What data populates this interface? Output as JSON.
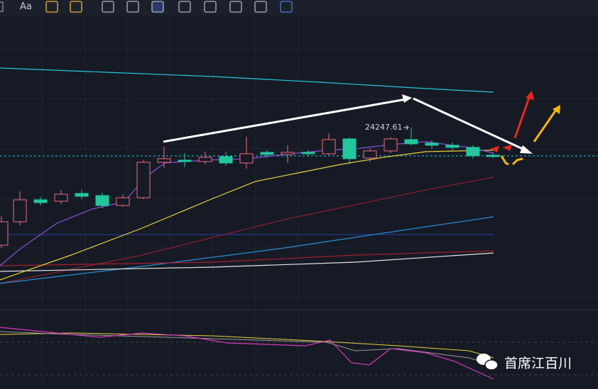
{
  "toolbar": {
    "font_tool": "Aa"
  },
  "chart": {
    "price_label": "24247.61"
  },
  "watermark": {
    "text": "首席江百川"
  }
}
